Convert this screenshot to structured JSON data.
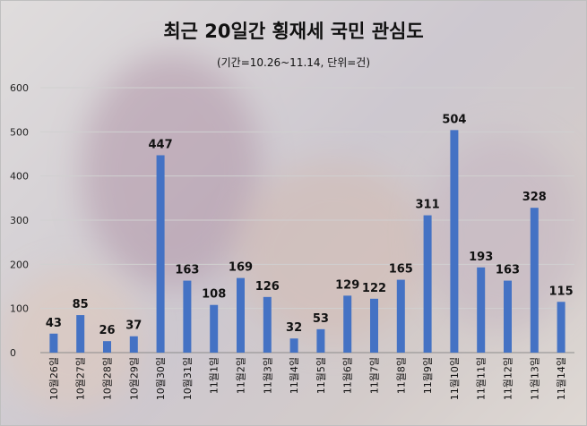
{
  "chart_data": {
    "type": "bar",
    "title": "최근 20일간 횡재세 국민 관심도",
    "subtitle": "(기간=10.26~11.14, 단위=건)",
    "categories": [
      "10월26일",
      "10월27일",
      "10월28일",
      "10월29일",
      "10월30일",
      "10월31일",
      "11월1일",
      "11월2일",
      "11월3일",
      "11월4일",
      "11월5일",
      "11월6일",
      "11월7일",
      "11월8일",
      "11월9일",
      "11월10일",
      "11월11일",
      "11월12일",
      "11월13일",
      "11월14일"
    ],
    "values": [
      43,
      85,
      26,
      37,
      447,
      163,
      108,
      169,
      126,
      32,
      53,
      129,
      122,
      165,
      311,
      504,
      193,
      163,
      328,
      115
    ],
    "ylim": [
      0,
      600
    ],
    "yticks": [
      0,
      100,
      200,
      300,
      400,
      500,
      600
    ],
    "grid": true,
    "bar_color": "#4472C4",
    "xlabel": "",
    "ylabel": ""
  }
}
